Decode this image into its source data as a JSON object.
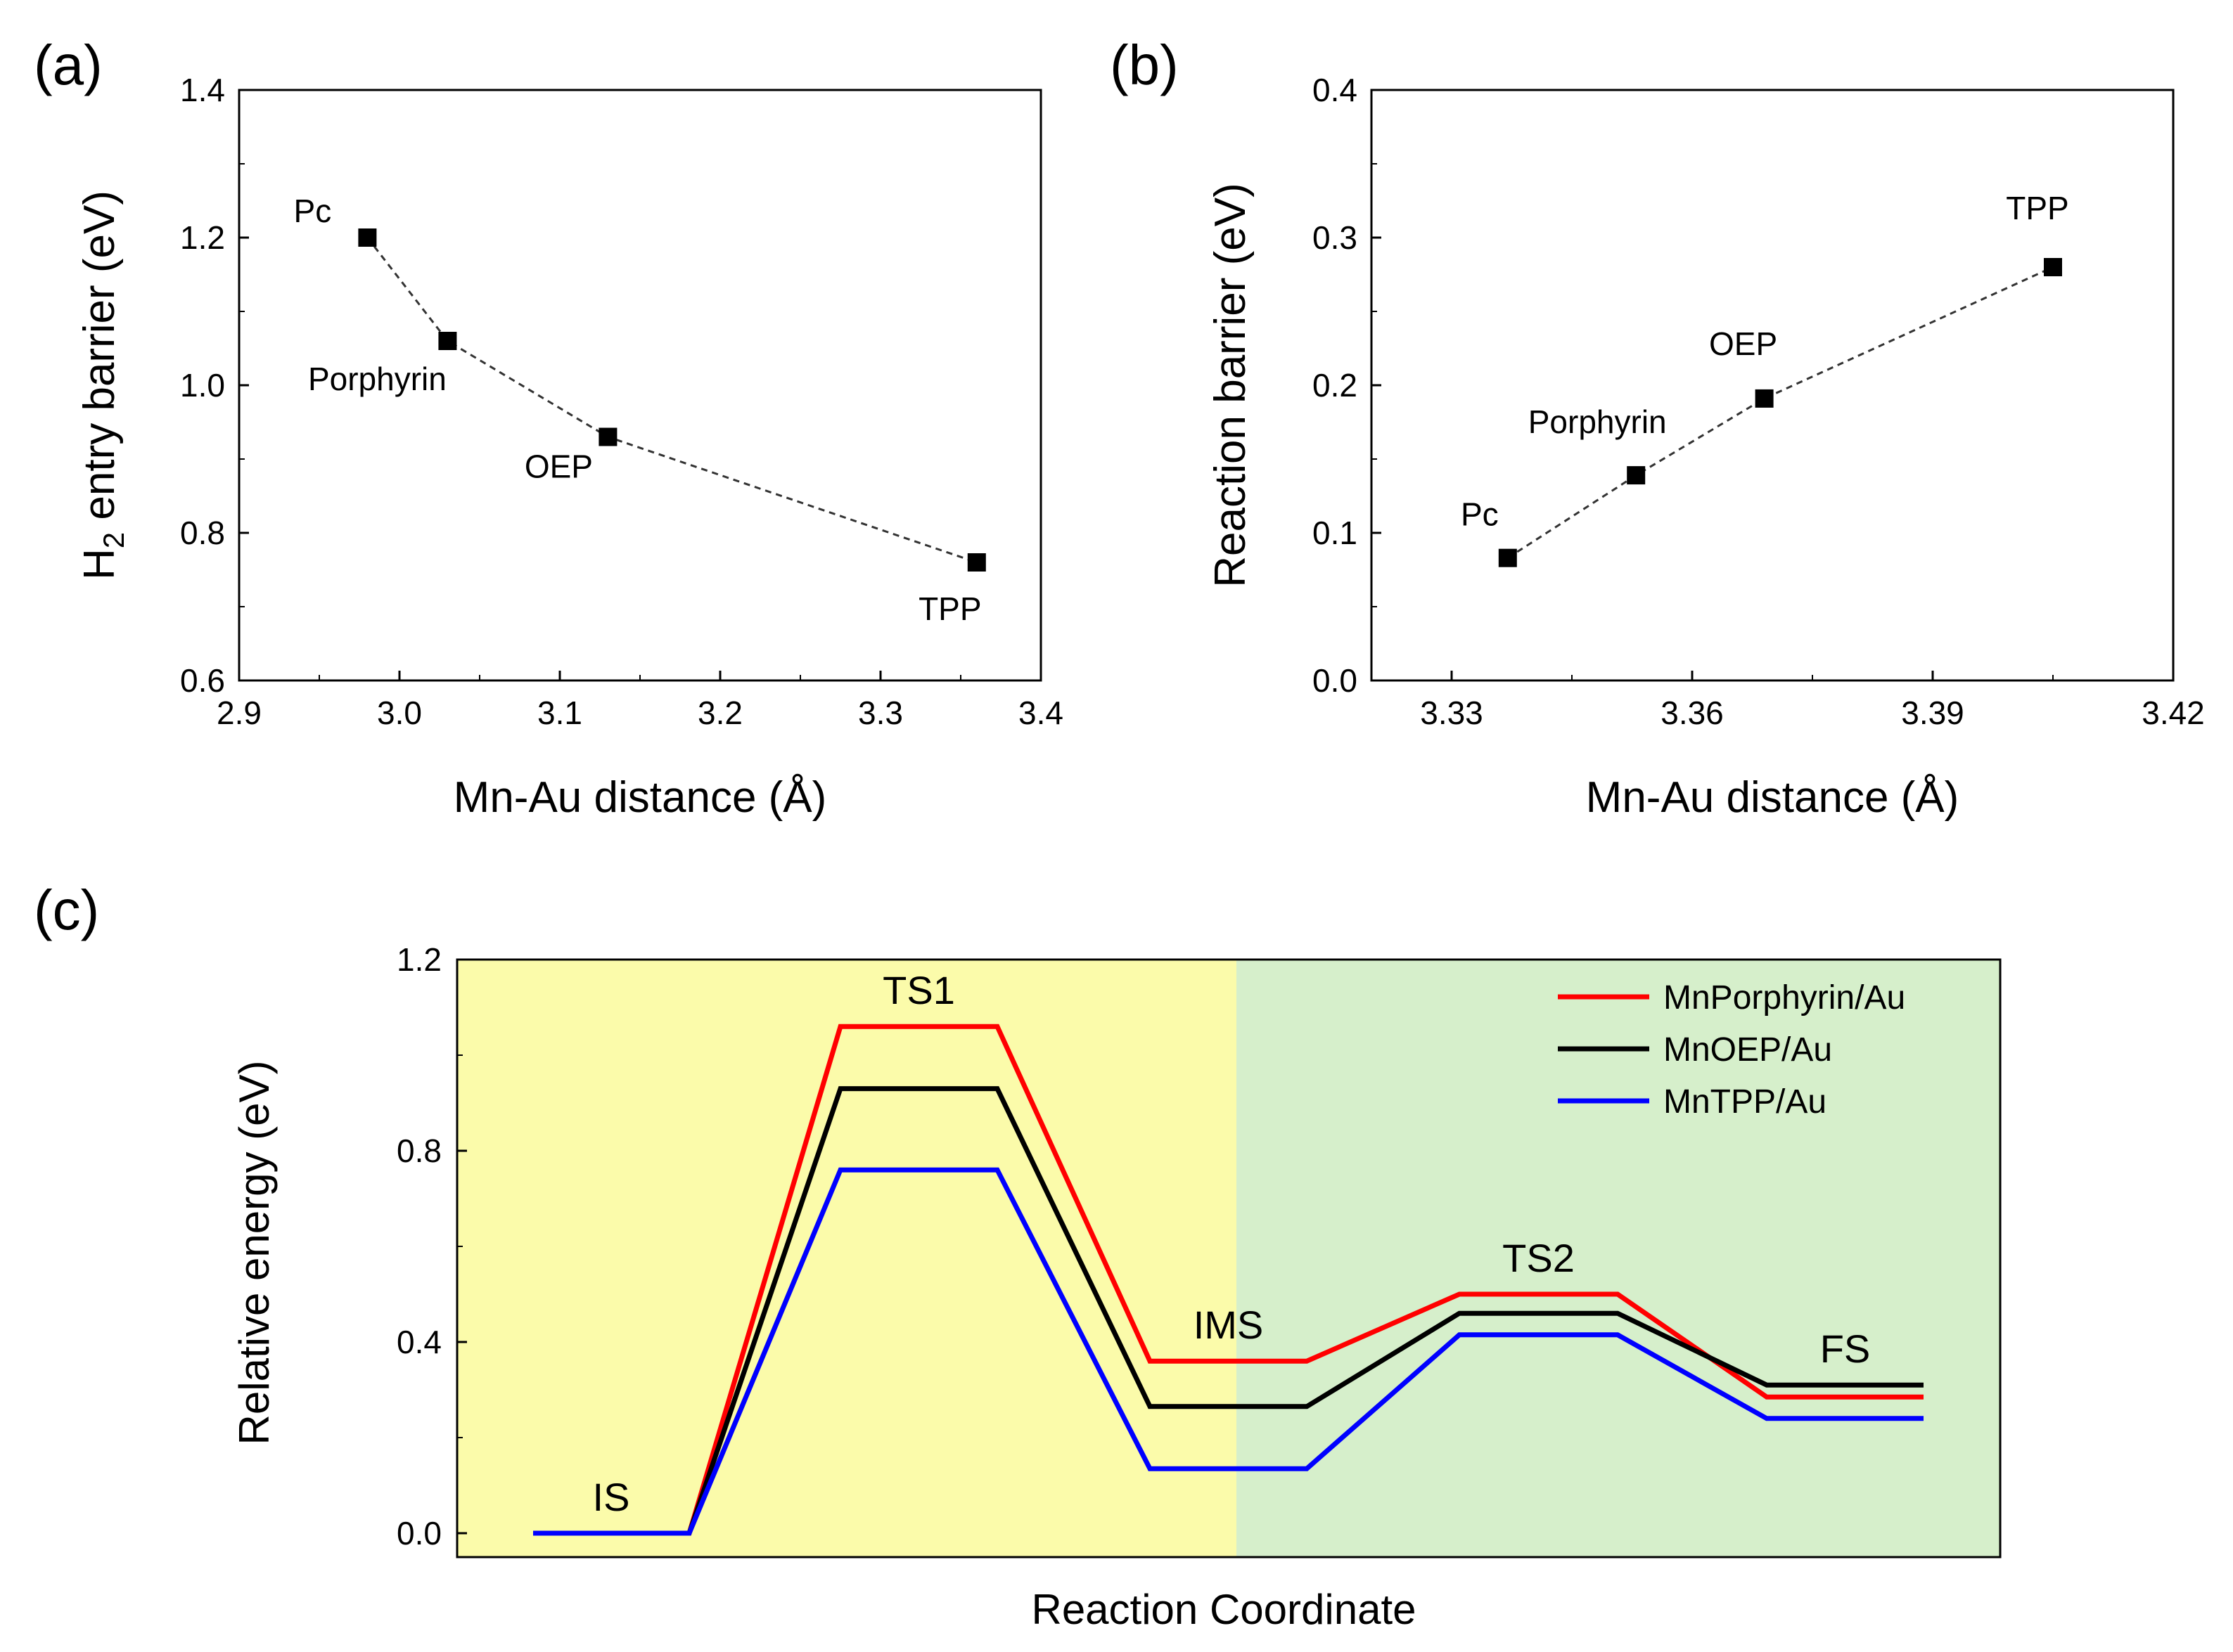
{
  "figure": {
    "panels": {
      "a": {
        "label": "(a)"
      },
      "b": {
        "label": "(b)"
      },
      "c": {
        "label": "(c)"
      }
    }
  },
  "chart_data": [
    {
      "id": "a",
      "type": "scatter",
      "xlabel": "Mn-Au distance  (Å)",
      "ylabel_main": "H",
      "ylabel_sub": "2",
      "ylabel_rest": " entry barrier  (eV)",
      "xlim": [
        2.9,
        3.4
      ],
      "ylim": [
        0.6,
        1.4
      ],
      "xticks": [
        "2.9",
        "3.0",
        "3.1",
        "3.2",
        "3.3",
        "3.4"
      ],
      "yticks": [
        "0.6",
        "0.8",
        "1.0",
        "1.2",
        "1.4"
      ],
      "connector": "dashed",
      "points": [
        {
          "label": "Pc",
          "x": 2.98,
          "y": 1.2
        },
        {
          "label": "Porphyrin",
          "x": 3.03,
          "y": 1.06
        },
        {
          "label": "OEP",
          "x": 3.13,
          "y": 0.93
        },
        {
          "label": "TPP",
          "x": 3.36,
          "y": 0.76
        }
      ]
    },
    {
      "id": "b",
      "type": "scatter",
      "xlabel": "Mn-Au distance  (Å)",
      "ylabel": "Reaction barrier  (eV)",
      "xlim": [
        3.32,
        3.42
      ],
      "ylim": [
        0.0,
        0.4
      ],
      "xticks": [
        "3.33",
        "3.36",
        "3.39",
        "3.42"
      ],
      "yticks": [
        "0.0",
        "0.1",
        "0.2",
        "0.3",
        "0.4"
      ],
      "connector": "dashed",
      "points": [
        {
          "label": "Pc",
          "x": 3.337,
          "y": 0.083
        },
        {
          "label": "Porphyrin",
          "x": 3.353,
          "y": 0.139
        },
        {
          "label": "OEP",
          "x": 3.369,
          "y": 0.191
        },
        {
          "label": "TPP",
          "x": 3.405,
          "y": 0.28
        }
      ]
    },
    {
      "id": "c",
      "type": "line",
      "xlabel": "Reaction Coordinate",
      "ylabel": "Relative energy (eV)",
      "ylim": [
        -0.05,
        1.2
      ],
      "yticks": [
        "0.0",
        "0.4",
        "0.8",
        "1.2"
      ],
      "regions": [
        {
          "name": "entry",
          "color": "#FBFBAA"
        },
        {
          "name": "reaction",
          "color": "#D6EFCB"
        }
      ],
      "stages": [
        {
          "label": "IS",
          "y": 0.0
        },
        {
          "label": "TS1",
          "y": 1.06
        },
        {
          "label": "IMS",
          "y": 0.36
        },
        {
          "label": "TS2",
          "y": 0.5
        },
        {
          "label": "FS",
          "y": 0.31
        }
      ],
      "series": [
        {
          "name": "MnPorphyrin/Au",
          "color": "#FF0000",
          "values": [
            0.0,
            1.06,
            0.36,
            0.5,
            0.285
          ]
        },
        {
          "name": "MnOEP/Au",
          "color": "#000000",
          "values": [
            0.0,
            0.93,
            0.265,
            0.46,
            0.31
          ]
        },
        {
          "name": "MnTPP/Au",
          "color": "#0000FF",
          "values": [
            0.0,
            0.76,
            0.135,
            0.415,
            0.24
          ]
        }
      ]
    }
  ]
}
